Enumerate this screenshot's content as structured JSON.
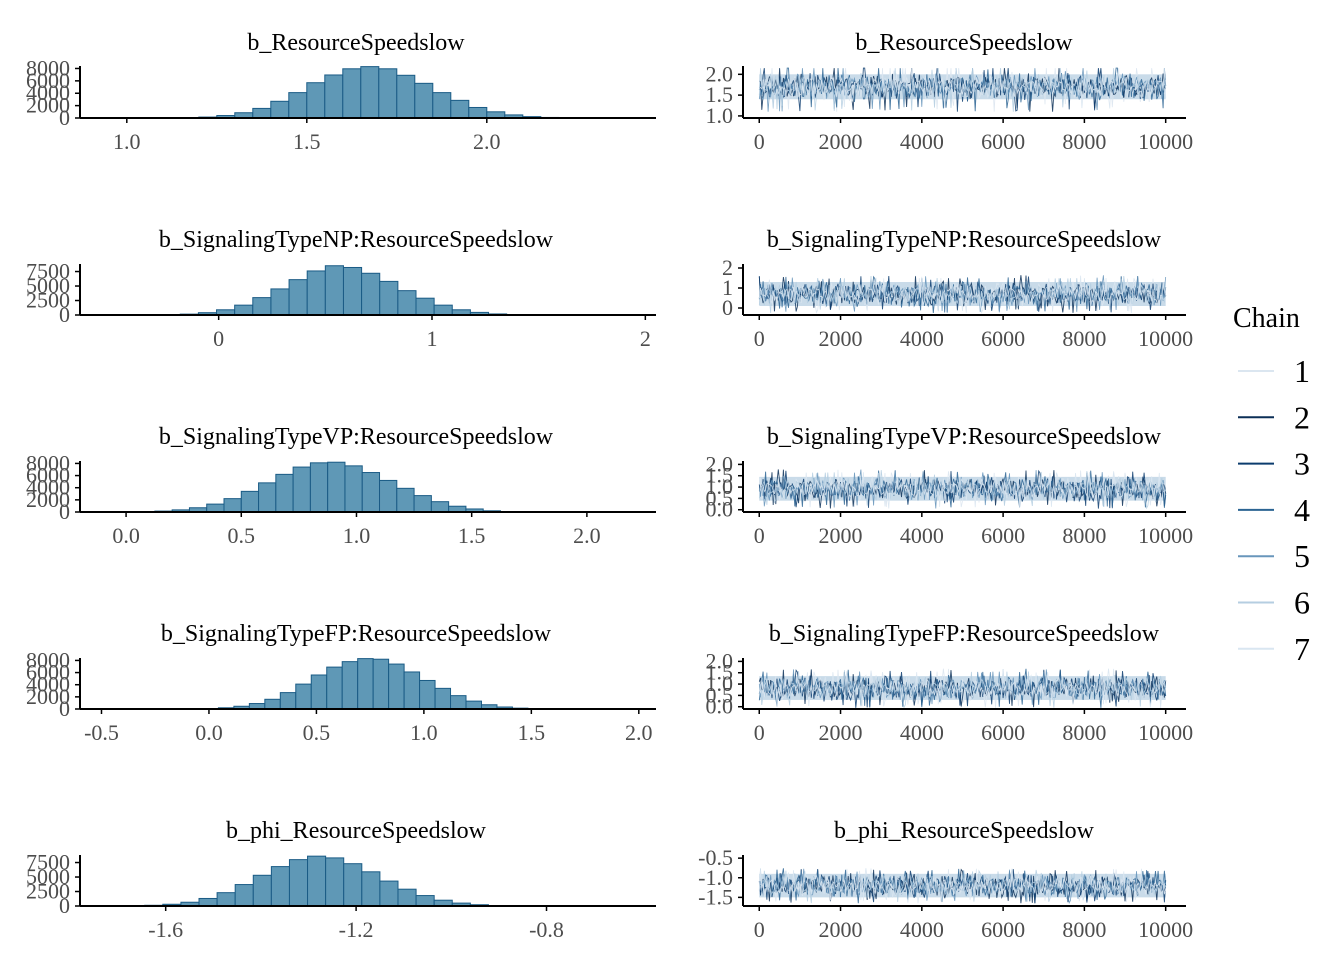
{
  "figure": {
    "legend": {
      "title": "Chain",
      "entries": [
        "1",
        "2",
        "3",
        "4",
        "5",
        "6",
        "7"
      ],
      "colors": [
        "#dbe6f0",
        "#0b2f57",
        "#0c3c6e",
        "#2b6493",
        "#6896bb",
        "#b5cee1",
        "#d9e6f1"
      ]
    },
    "colors": {
      "hist_fill": "#5f98b6",
      "hist_stroke": "#1a5b85",
      "axis": "#000000",
      "tick_text": "#4d4d4d",
      "trace_band": "#c9dbe9",
      "trace_dark": "#0c3c6e"
    }
  },
  "chart_data": [
    {
      "type": "bar",
      "panel": "histogram",
      "title": "b_ResourceSpeedslow",
      "xlim": [
        0.87,
        2.47
      ],
      "ylim": [
        0,
        8400
      ],
      "xticks": [
        1.0,
        1.5,
        2.0
      ],
      "xtick_labels": [
        "1.0",
        "1.5",
        "2.0"
      ],
      "yticks": [
        0,
        2000,
        4000,
        6000,
        8000
      ],
      "ytick_labels": [
        "0",
        "2000",
        "4000",
        "6000",
        "8000"
      ],
      "bins_start": 1.15,
      "bin_width": 0.05,
      "values": [
        30,
        150,
        400,
        850,
        1550,
        2700,
        4100,
        5700,
        6950,
        7950,
        8300,
        7950,
        6900,
        5600,
        4100,
        2850,
        1700,
        1000,
        500,
        220,
        90,
        30,
        10
      ]
    },
    {
      "type": "line",
      "panel": "trace",
      "title": "b_ResourceSpeedslow",
      "xlim": [
        -400,
        10500
      ],
      "ylim": [
        0.95,
        2.2
      ],
      "xticks": [
        0,
        2000,
        4000,
        6000,
        8000,
        10000
      ],
      "xtick_labels": [
        "0",
        "2000",
        "4000",
        "6000",
        "8000",
        "10000"
      ],
      "yticks": [
        1.0,
        1.5,
        2.0
      ],
      "ytick_labels": [
        "1.0",
        "1.5",
        "2.0"
      ],
      "iterations": 10000,
      "chains": 7,
      "center": 1.7,
      "band_low": 1.4,
      "band_high": 2.0,
      "extreme_low": 1.1,
      "extreme_high": 2.15
    },
    {
      "type": "bar",
      "panel": "histogram",
      "title": "b_SignalingTypeNP:ResourceSpeedslow",
      "xlim": [
        -0.65,
        2.05
      ],
      "ylim": [
        0,
        8800
      ],
      "xticks": [
        0,
        1,
        2
      ],
      "xtick_labels": [
        "0",
        "1",
        "2"
      ],
      "yticks": [
        0,
        2500,
        5000,
        7500
      ],
      "ytick_labels": [
        "0",
        "2500",
        "5000",
        "7500"
      ],
      "bins_start": -0.35,
      "bin_width": 0.085,
      "values": [
        20,
        60,
        150,
        400,
        900,
        1700,
        3000,
        4500,
        6100,
        7600,
        8500,
        8200,
        7200,
        5800,
        4200,
        2900,
        1700,
        900,
        450,
        180,
        70,
        20
      ]
    },
    {
      "type": "line",
      "panel": "trace",
      "title": "b_SignalingTypeNP:ResourceSpeedslow",
      "xlim": [
        -400,
        10500
      ],
      "ylim": [
        -0.35,
        2.2
      ],
      "xticks": [
        0,
        2000,
        4000,
        6000,
        8000,
        10000
      ],
      "xtick_labels": [
        "0",
        "2000",
        "4000",
        "6000",
        "8000",
        "10000"
      ],
      "yticks": [
        0,
        1,
        2
      ],
      "ytick_labels": [
        "0",
        "1",
        "2"
      ],
      "iterations": 10000,
      "chains": 7,
      "center": 0.7,
      "band_low": 0.1,
      "band_high": 1.3,
      "extreme_low": -0.25,
      "extreme_high": 1.75
    },
    {
      "type": "bar",
      "panel": "histogram",
      "title": "b_SignalingTypeVP:ResourceSpeedslow",
      "xlim": [
        -0.2,
        2.3
      ],
      "ylim": [
        0,
        8400
      ],
      "xticks": [
        0.0,
        0.5,
        1.0,
        1.5,
        2.0
      ],
      "xtick_labels": [
        "0.0",
        "0.5",
        "1.0",
        "1.5",
        "2.0"
      ],
      "yticks": [
        0,
        2000,
        4000,
        6000,
        8000
      ],
      "ytick_labels": [
        "0",
        "2000",
        "4000",
        "6000",
        "8000"
      ],
      "bins_start": 0.05,
      "bin_width": 0.075,
      "values": [
        50,
        150,
        350,
        700,
        1300,
        2200,
        3400,
        4800,
        6200,
        7400,
        8100,
        8200,
        7600,
        6500,
        5200,
        3900,
        2700,
        1700,
        950,
        500,
        200,
        80,
        25
      ]
    },
    {
      "type": "line",
      "panel": "trace",
      "title": "b_SignalingTypeVP:ResourceSpeedslow",
      "xlim": [
        -400,
        10500
      ],
      "ylim": [
        -0.1,
        2.15
      ],
      "xticks": [
        0,
        2000,
        4000,
        6000,
        8000,
        10000
      ],
      "xtick_labels": [
        "0",
        "2000",
        "4000",
        "6000",
        "8000",
        "10000"
      ],
      "yticks": [
        0.0,
        0.5,
        1.0,
        1.5,
        2.0
      ],
      "ytick_labels": [
        "0.0",
        "0.5",
        "1.0",
        "1.5",
        "2.0"
      ],
      "iterations": 10000,
      "chains": 7,
      "center": 0.92,
      "band_low": 0.4,
      "band_high": 1.45,
      "extreme_low": 0.05,
      "extreme_high": 1.95
    },
    {
      "type": "bar",
      "panel": "histogram",
      "title": "b_SignalingTypeFP:ResourceSpeedslow",
      "xlim": [
        -0.6,
        2.08
      ],
      "ylim": [
        0,
        8400
      ],
      "xticks": [
        -0.5,
        0.0,
        0.5,
        1.0,
        1.5,
        2.0
      ],
      "xtick_labels": [
        "-0.5",
        "0.0",
        "0.5",
        "1.0",
        "1.5",
        "2.0"
      ],
      "yticks": [
        0,
        2000,
        4000,
        6000,
        8000
      ],
      "ytick_labels": [
        "0",
        "2000",
        "4000",
        "6000",
        "8000"
      ],
      "bins_start": -0.1,
      "bin_width": 0.072,
      "values": [
        30,
        80,
        200,
        450,
        900,
        1600,
        2700,
        4100,
        5600,
        6900,
        7800,
        8300,
        8200,
        7400,
        6100,
        4700,
        3400,
        2200,
        1300,
        700,
        330,
        140,
        50,
        15
      ]
    },
    {
      "type": "line",
      "panel": "trace",
      "title": "b_SignalingTypeFP:ResourceSpeedslow",
      "xlim": [
        -400,
        10500
      ],
      "ylim": [
        -0.1,
        2.15
      ],
      "xticks": [
        0,
        2000,
        4000,
        6000,
        8000,
        10000
      ],
      "xtick_labels": [
        "0",
        "2000",
        "4000",
        "6000",
        "8000",
        "10000"
      ],
      "yticks": [
        0.0,
        0.5,
        1.0,
        1.5,
        2.0
      ],
      "ytick_labels": [
        "0.0",
        "0.5",
        "1.0",
        "1.5",
        "2.0"
      ],
      "iterations": 10000,
      "chains": 7,
      "center": 0.82,
      "band_low": 0.3,
      "band_high": 1.35,
      "extreme_low": -0.05,
      "extreme_high": 1.9
    },
    {
      "type": "bar",
      "panel": "histogram",
      "title": "b_phi_ResourceSpeedslow",
      "xlim": [
        -1.78,
        -0.57
      ],
      "ylim": [
        0,
        8800
      ],
      "xticks": [
        -1.6,
        -1.2,
        -0.8
      ],
      "xtick_labels": [
        "-1.6",
        "-1.2",
        "-0.8"
      ],
      "yticks": [
        0,
        2500,
        5000,
        7500
      ],
      "ytick_labels": [
        "0",
        "2500",
        "5000",
        "7500"
      ],
      "bins_start": -1.72,
      "bin_width": 0.038,
      "values": [
        20,
        50,
        120,
        300,
        650,
        1300,
        2300,
        3700,
        5300,
        6800,
        8000,
        8600,
        8300,
        7300,
        5900,
        4300,
        2900,
        1800,
        1000,
        500,
        220,
        80,
        25
      ]
    },
    {
      "type": "line",
      "panel": "trace",
      "title": "b_phi_ResourceSpeedslow",
      "xlim": [
        -400,
        10500
      ],
      "ylim": [
        -1.72,
        -0.42
      ],
      "xticks": [
        0,
        2000,
        4000,
        6000,
        8000,
        10000
      ],
      "xtick_labels": [
        "0",
        "2000",
        "4000",
        "6000",
        "8000",
        "10000"
      ],
      "yticks": [
        -1.5,
        -1.0,
        -0.5
      ],
      "ytick_labels": [
        "-1.5",
        "-1.0",
        "-0.5"
      ],
      "iterations": 10000,
      "chains": 7,
      "center": -1.2,
      "band_low": -1.5,
      "band_high": -0.9,
      "extreme_low": -1.65,
      "extreme_high": -0.6
    }
  ]
}
